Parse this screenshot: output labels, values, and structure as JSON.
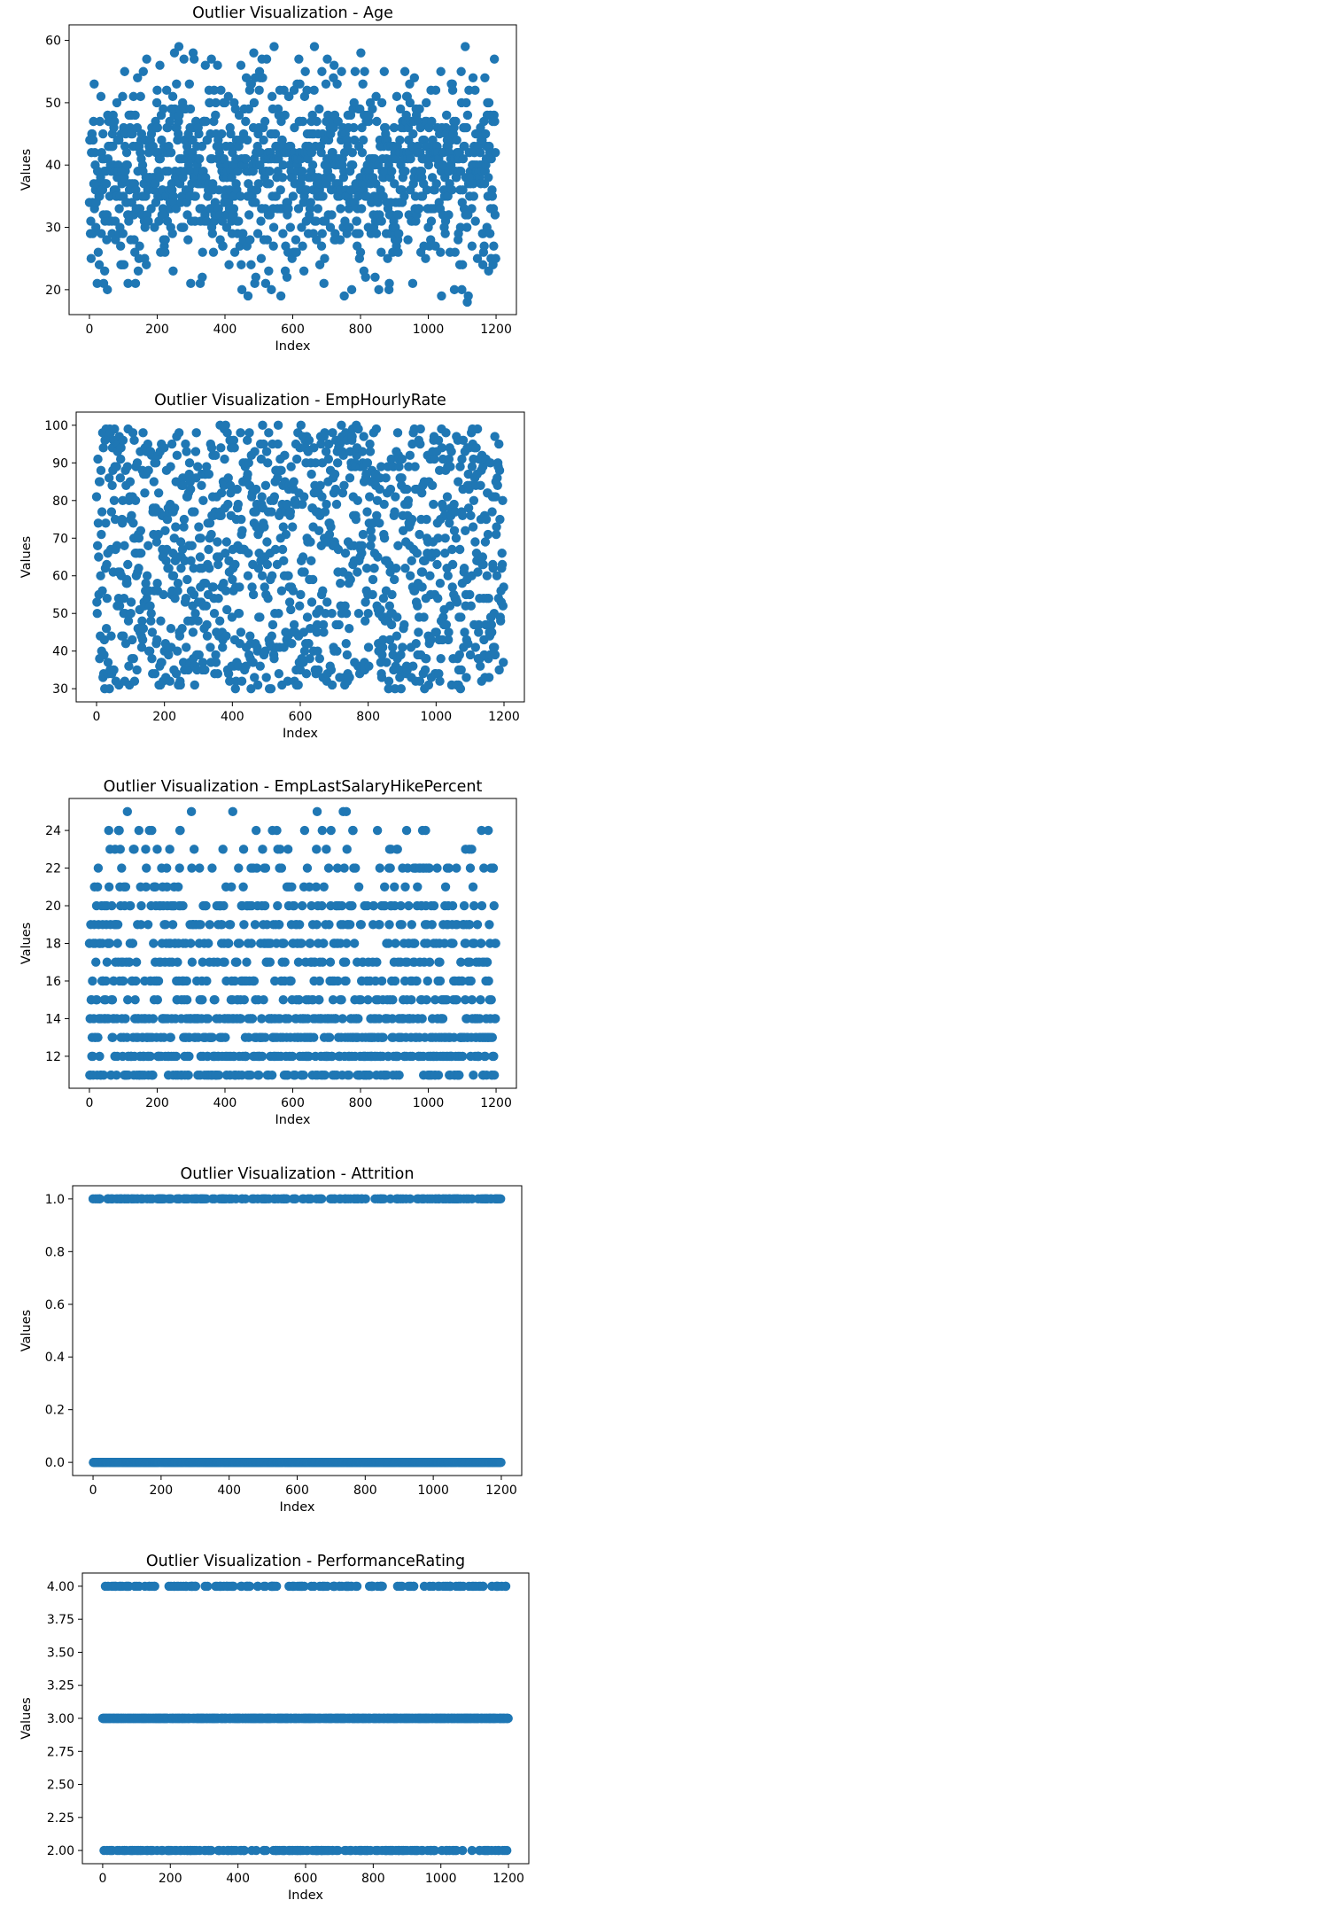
{
  "chart_data": [
    {
      "type": "scatter",
      "title": "Outlier Visualization - Age",
      "xlabel": "Index",
      "ylabel": "Values",
      "xlim": [
        -60,
        1260
      ],
      "ylim": [
        16,
        62.5
      ],
      "xticks": [
        0,
        200,
        400,
        600,
        800,
        1000,
        1200
      ],
      "yticks": [
        20,
        30,
        40,
        50,
        60
      ],
      "tick_format": "int",
      "color": "#1f77b4",
      "n_points": 1200,
      "value_range": [
        18,
        60
      ],
      "value_step": 1,
      "distribution": "integers 18–60, concentrated around 28–40"
    },
    {
      "type": "scatter",
      "title": "Outlier Visualization - EmpHourlyRate",
      "xlabel": "Index",
      "ylabel": "Values",
      "xlim": [
        -60,
        1260
      ],
      "ylim": [
        26.5,
        103.5
      ],
      "xticks": [
        0,
        200,
        400,
        600,
        800,
        1000,
        1200
      ],
      "yticks": [
        30,
        40,
        50,
        60,
        70,
        80,
        90,
        100
      ],
      "tick_format": "int",
      "color": "#1f77b4",
      "n_points": 1200,
      "value_range": [
        30,
        100
      ],
      "value_step": 1,
      "distribution": "integers 30–100, roughly uniform"
    },
    {
      "type": "scatter",
      "title": "Outlier Visualization - EmpLastSalaryHikePercent",
      "xlabel": "Index",
      "ylabel": "Values",
      "xlim": [
        -60,
        1260
      ],
      "ylim": [
        10.3,
        25.7
      ],
      "xticks": [
        0,
        200,
        400,
        600,
        800,
        1000,
        1200
      ],
      "yticks": [
        12,
        14,
        16,
        18,
        20,
        22,
        24
      ],
      "tick_format": "int",
      "color": "#1f77b4",
      "n_points": 1200,
      "levels": [
        11,
        12,
        13,
        14,
        15,
        16,
        17,
        18,
        19,
        20,
        21,
        22,
        23,
        24,
        25
      ],
      "level_weights": [
        14,
        15,
        14,
        14,
        8,
        8,
        7,
        9,
        7,
        7,
        4,
        6,
        3,
        2,
        1
      ]
    },
    {
      "type": "scatter",
      "title": "Outlier Visualization - Attrition",
      "xlabel": "Index",
      "ylabel": "Values",
      "xlim": [
        -60,
        1260
      ],
      "ylim": [
        -0.05,
        1.05
      ],
      "xticks": [
        0,
        200,
        400,
        600,
        800,
        1000,
        1200
      ],
      "yticks": [
        0.0,
        0.2,
        0.4,
        0.6,
        0.8,
        1.0
      ],
      "tick_format": "1dp",
      "color": "#1f77b4",
      "n_points": 1200,
      "levels": [
        0,
        1
      ],
      "level_weights": [
        85,
        15
      ]
    },
    {
      "type": "scatter",
      "title": "Outlier Visualization - PerformanceRating",
      "xlabel": "Index",
      "ylabel": "Values",
      "xlim": [
        -60,
        1260
      ],
      "ylim": [
        1.9,
        4.1
      ],
      "xticks": [
        0,
        200,
        400,
        600,
        800,
        1000,
        1200
      ],
      "yticks": [
        2.0,
        2.25,
        2.5,
        2.75,
        3.0,
        3.25,
        3.5,
        3.75,
        4.0
      ],
      "tick_format": "2dp",
      "color": "#1f77b4",
      "n_points": 1200,
      "levels": [
        2,
        3,
        4
      ],
      "level_weights": [
        16,
        69,
        15
      ]
    }
  ]
}
